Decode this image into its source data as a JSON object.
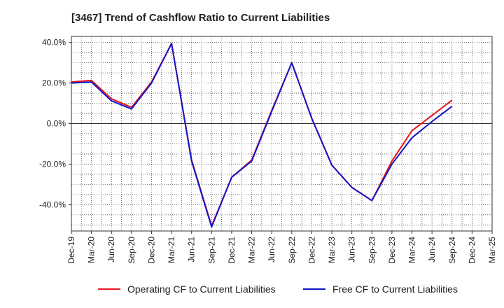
{
  "chart_data": {
    "type": "line",
    "title": "[3467]  Trend of Cashflow Ratio to Current Liabilities",
    "xlabel": "",
    "ylabel": "",
    "x": [
      "Dec-19",
      "Mar-20",
      "Jun-20",
      "Sep-20",
      "Dec-20",
      "Mar-21",
      "Jun-21",
      "Sep-21",
      "Dec-21",
      "Mar-22",
      "Jun-22",
      "Sep-22",
      "Dec-22",
      "Mar-23",
      "Jun-23",
      "Sep-23",
      "Dec-23",
      "Mar-24",
      "Jun-24",
      "Sep-24",
      "Dec-24",
      "Mar-25"
    ],
    "ylim": [
      -53,
      43
    ],
    "yticks": [
      40,
      20,
      0,
      -20,
      -40
    ],
    "ytick_labels": [
      "40.0%",
      "20.0%",
      "0.0%",
      "-20.0%",
      "-40.0%"
    ],
    "grid": true,
    "legend_position": "bottom",
    "series": [
      {
        "name": "Operating CF to Current Liabilities",
        "color": "#e8141c",
        "values": [
          20.5,
          21.3,
          12.2,
          8.0,
          20.5,
          39.5,
          -18.0,
          -50.5,
          -26.5,
          -18.0,
          6.5,
          30.0,
          2.5,
          -20.5,
          -31.5,
          -38.0,
          -18.5,
          -3.5,
          4.0,
          11.5,
          null,
          null
        ]
      },
      {
        "name": "Free CF to Current Liabilities",
        "color": "#1414c8",
        "values": [
          20.0,
          20.5,
          11.2,
          7.2,
          20.0,
          39.5,
          -18.5,
          -51.0,
          -26.5,
          -18.5,
          6.0,
          30.0,
          2.5,
          -20.5,
          -31.5,
          -38.0,
          -20.0,
          -7.0,
          1.0,
          8.5,
          null,
          null
        ]
      }
    ]
  }
}
